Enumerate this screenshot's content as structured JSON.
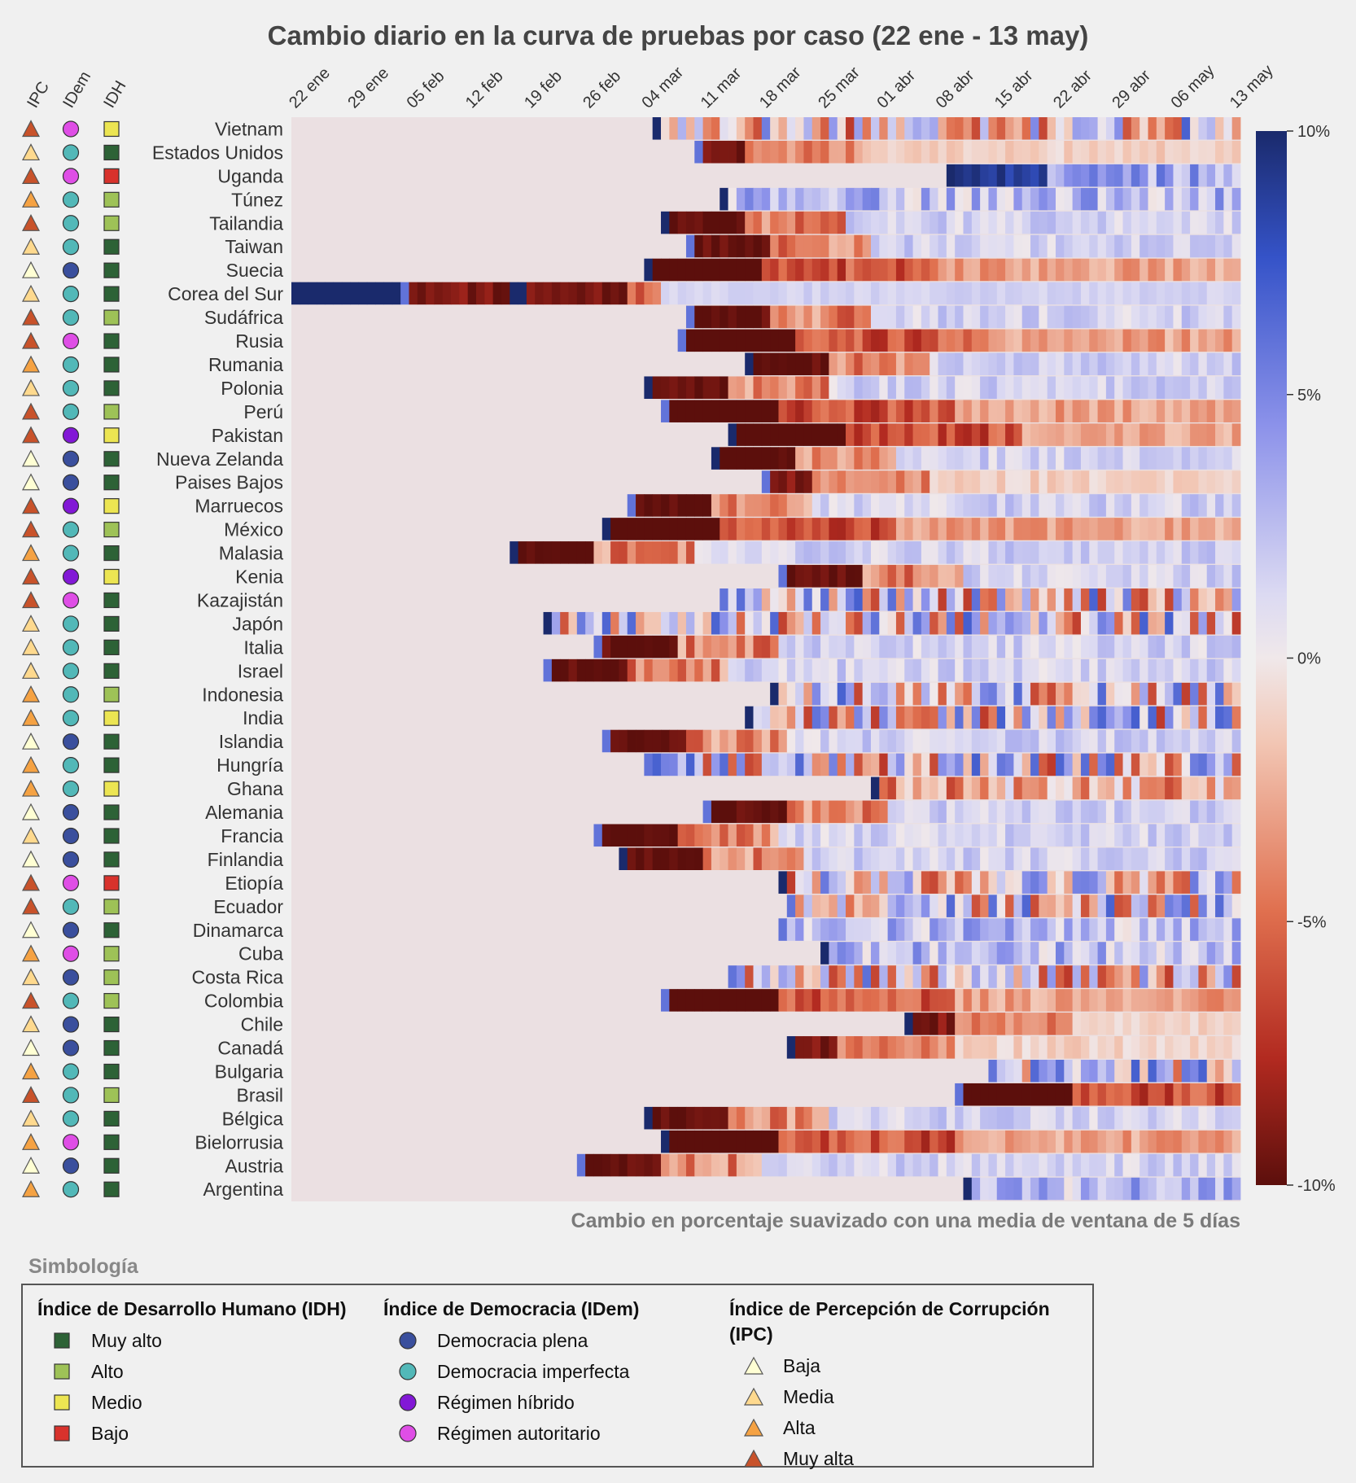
{
  "chart_data": {
    "type": "heatmap",
    "title": "Cambio diario en la curva de pruebas por caso (22 ene - 13 may)",
    "subtitle": "Cambio en porcentaje suavizado con una media de ventana de 5 días",
    "x_tick_labels": [
      "22 ene",
      "29 ene",
      "05 feb",
      "12 feb",
      "19 feb",
      "26 feb",
      "04 mar",
      "11 mar",
      "18 mar",
      "25 mar",
      "01 abr",
      "08 abr",
      "15 abr",
      "22 abr",
      "29 abr",
      "06 may",
      "13 may"
    ],
    "days": 113,
    "indicator_headers": [
      "IPC",
      "IDem",
      "IDH"
    ],
    "colorbar": {
      "min": -10,
      "max": 10,
      "tick_labels": [
        "10%",
        "5%",
        "0%",
        "-5%",
        "-10%"
      ],
      "tick_values": [
        10,
        5,
        0,
        -5,
        -10
      ]
    },
    "countries": [
      {
        "name": "Vietnam",
        "ipc": "Muy alta",
        "idem": "Régimen autoritario",
        "idh": "Medio",
        "start": 43,
        "pattern": "mixed"
      },
      {
        "name": "Estados Unidos",
        "ipc": "Media",
        "idem": "Democracia imperfecta",
        "idh": "Muy alto",
        "start": 48,
        "pattern": "neg_fade"
      },
      {
        "name": "Uganda",
        "ipc": "Muy alta",
        "idem": "Régimen autoritario",
        "idh": "Bajo",
        "start": 78,
        "pattern": "pos_strong"
      },
      {
        "name": "Túnez",
        "ipc": "Alta",
        "idem": "Democracia imperfecta",
        "idh": "Alto",
        "start": 51,
        "pattern": "mixed_pos"
      },
      {
        "name": "Tailandia",
        "ipc": "Muy alta",
        "idem": "Democracia imperfecta",
        "idh": "Alto",
        "start": 44,
        "pattern": "neg_then_pos"
      },
      {
        "name": "Taiwan",
        "ipc": "Media",
        "idem": "Democracia imperfecta",
        "idh": "Muy alto",
        "start": 47,
        "pattern": "neg_then_pos"
      },
      {
        "name": "Suecia",
        "ipc": "Baja",
        "idem": "Democracia plena",
        "idh": "Muy alto",
        "start": 42,
        "pattern": "neg_long"
      },
      {
        "name": "Corea del Sur",
        "ipc": "Media",
        "idem": "Democracia imperfecta",
        "idh": "Muy alto",
        "start": 0,
        "pattern": "korea"
      },
      {
        "name": "Sudáfrica",
        "ipc": "Muy alta",
        "idem": "Democracia imperfecta",
        "idh": "Alto",
        "start": 47,
        "pattern": "neg_then_pos"
      },
      {
        "name": "Rusia",
        "ipc": "Muy alta",
        "idem": "Régimen autoritario",
        "idh": "Muy alto",
        "start": 46,
        "pattern": "neg_long"
      },
      {
        "name": "Rumania",
        "ipc": "Alta",
        "idem": "Democracia imperfecta",
        "idh": "Muy alto",
        "start": 54,
        "pattern": "neg_then_pos"
      },
      {
        "name": "Polonia",
        "ipc": "Media",
        "idem": "Democracia imperfecta",
        "idh": "Muy alto",
        "start": 42,
        "pattern": "neg_then_pos"
      },
      {
        "name": "Perú",
        "ipc": "Muy alta",
        "idem": "Democracia imperfecta",
        "idh": "Alto",
        "start": 44,
        "pattern": "neg_long"
      },
      {
        "name": "Pakistan",
        "ipc": "Muy alta",
        "idem": "Régimen híbrido",
        "idh": "Medio",
        "start": 52,
        "pattern": "neg_long"
      },
      {
        "name": "Nueva Zelanda",
        "ipc": "Baja",
        "idem": "Democracia plena",
        "idh": "Muy alto",
        "start": 50,
        "pattern": "neg_then_pos"
      },
      {
        "name": "Paises Bajos",
        "ipc": "Baja",
        "idem": "Democracia plena",
        "idh": "Muy alto",
        "start": 56,
        "pattern": "neg_fade"
      },
      {
        "name": "Marruecos",
        "ipc": "Muy alta",
        "idem": "Régimen híbrido",
        "idh": "Medio",
        "start": 40,
        "pattern": "neg_then_pos"
      },
      {
        "name": "México",
        "ipc": "Muy alta",
        "idem": "Democracia imperfecta",
        "idh": "Alto",
        "start": 37,
        "pattern": "neg_long"
      },
      {
        "name": "Malasia",
        "ipc": "Alta",
        "idem": "Democracia imperfecta",
        "idh": "Muy alto",
        "start": 26,
        "pattern": "neg_then_pos"
      },
      {
        "name": "Kenia",
        "ipc": "Muy alta",
        "idem": "Régimen híbrido",
        "idh": "Medio",
        "start": 58,
        "pattern": "neg_then_pos"
      },
      {
        "name": "Kazajistán",
        "ipc": "Muy alta",
        "idem": "Régimen autoritario",
        "idh": "Muy alto",
        "start": 51,
        "pattern": "mixed"
      },
      {
        "name": "Japón",
        "ipc": "Media",
        "idem": "Democracia imperfecta",
        "idh": "Muy alto",
        "start": 30,
        "pattern": "mixed"
      },
      {
        "name": "Italia",
        "ipc": "Media",
        "idem": "Democracia imperfecta",
        "idh": "Muy alto",
        "start": 36,
        "pattern": "neg_then_pos"
      },
      {
        "name": "Israel",
        "ipc": "Media",
        "idem": "Democracia imperfecta",
        "idh": "Muy alto",
        "start": 30,
        "pattern": "neg_then_pos"
      },
      {
        "name": "Indonesia",
        "ipc": "Alta",
        "idem": "Democracia imperfecta",
        "idh": "Alto",
        "start": 57,
        "pattern": "mixed"
      },
      {
        "name": "India",
        "ipc": "Alta",
        "idem": "Democracia imperfecta",
        "idh": "Medio",
        "start": 54,
        "pattern": "mixed"
      },
      {
        "name": "Islandia",
        "ipc": "Baja",
        "idem": "Democracia plena",
        "idh": "Muy alto",
        "start": 37,
        "pattern": "neg_then_pos"
      },
      {
        "name": "Hungría",
        "ipc": "Alta",
        "idem": "Democracia imperfecta",
        "idh": "Muy alto",
        "start": 42,
        "pattern": "mixed"
      },
      {
        "name": "Ghana",
        "ipc": "Alta",
        "idem": "Democracia imperfecta",
        "idh": "Medio",
        "start": 69,
        "pattern": "mixed_neg"
      },
      {
        "name": "Alemania",
        "ipc": "Baja",
        "idem": "Democracia plena",
        "idh": "Muy alto",
        "start": 49,
        "pattern": "neg_then_pos"
      },
      {
        "name": "Francia",
        "ipc": "Media",
        "idem": "Democracia plena",
        "idh": "Muy alto",
        "start": 36,
        "pattern": "neg_then_pos"
      },
      {
        "name": "Finlandia",
        "ipc": "Baja",
        "idem": "Democracia plena",
        "idh": "Muy alto",
        "start": 39,
        "pattern": "neg_then_pos"
      },
      {
        "name": "Etiopía",
        "ipc": "Muy alta",
        "idem": "Régimen autoritario",
        "idh": "Bajo",
        "start": 58,
        "pattern": "mixed"
      },
      {
        "name": "Ecuador",
        "ipc": "Muy alta",
        "idem": "Democracia imperfecta",
        "idh": "Alto",
        "start": 59,
        "pattern": "mixed"
      },
      {
        "name": "Dinamarca",
        "ipc": "Baja",
        "idem": "Democracia plena",
        "idh": "Muy alto",
        "start": 58,
        "pattern": "mixed_pos"
      },
      {
        "name": "Cuba",
        "ipc": "Alta",
        "idem": "Régimen autoritario",
        "idh": "Alto",
        "start": 63,
        "pattern": "mixed_pos"
      },
      {
        "name": "Costa Rica",
        "ipc": "Media",
        "idem": "Democracia plena",
        "idh": "Alto",
        "start": 52,
        "pattern": "mixed"
      },
      {
        "name": "Colombia",
        "ipc": "Muy alta",
        "idem": "Democracia imperfecta",
        "idh": "Alto",
        "start": 44,
        "pattern": "neg_long"
      },
      {
        "name": "Chile",
        "ipc": "Media",
        "idem": "Democracia plena",
        "idh": "Muy alto",
        "start": 73,
        "pattern": "neg_fade"
      },
      {
        "name": "Canadá",
        "ipc": "Baja",
        "idem": "Democracia plena",
        "idh": "Muy alto",
        "start": 59,
        "pattern": "neg_fade"
      },
      {
        "name": "Bulgaria",
        "ipc": "Alta",
        "idem": "Democracia imperfecta",
        "idh": "Muy alto",
        "start": 83,
        "pattern": "mixed"
      },
      {
        "name": "Brasil",
        "ipc": "Muy alta",
        "idem": "Democracia imperfecta",
        "idh": "Alto",
        "start": 79,
        "pattern": "neg_long"
      },
      {
        "name": "Bélgica",
        "ipc": "Media",
        "idem": "Democracia imperfecta",
        "idh": "Muy alto",
        "start": 42,
        "pattern": "neg_then_pos"
      },
      {
        "name": "Bielorrusia",
        "ipc": "Alta",
        "idem": "Régimen autoritario",
        "idh": "Muy alto",
        "start": 44,
        "pattern": "neg_long"
      },
      {
        "name": "Austria",
        "ipc": "Baja",
        "idem": "Democracia plena",
        "idh": "Muy alto",
        "start": 34,
        "pattern": "neg_then_pos"
      },
      {
        "name": "Argentina",
        "ipc": "Alta",
        "idem": "Democracia imperfecta",
        "idh": "Muy alto",
        "start": 80,
        "pattern": "mixed_pos"
      }
    ]
  },
  "legend": {
    "heading": "Simbología",
    "idh": {
      "title": "Índice de Desarrollo Humano (IDH)",
      "items": [
        {
          "label": "Muy alto",
          "color": "#2d6236"
        },
        {
          "label": "Alto",
          "color": "#9ec257"
        },
        {
          "label": "Medio",
          "color": "#ece552"
        },
        {
          "label": "Bajo",
          "color": "#d8322c"
        }
      ]
    },
    "idem": {
      "title": "Índice de Democracia (IDem)",
      "items": [
        {
          "label": "Democracia plena",
          "color": "#3a4f9d"
        },
        {
          "label": "Democracia imperfecta",
          "color": "#52b8b8"
        },
        {
          "label": "Régimen híbrido",
          "color": "#8218d6"
        },
        {
          "label": "Régimen autoritario",
          "color": "#df4ee6"
        }
      ]
    },
    "ipc": {
      "title": "Índice de Percepción de Corrupción (IPC)",
      "items": [
        {
          "label": "Baja",
          "color": "#ffffd4"
        },
        {
          "label": "Media",
          "color": "#fed98e"
        },
        {
          "label": "Alta",
          "color": "#f5a243"
        },
        {
          "label": "Muy alta",
          "color": "#c8522a"
        }
      ]
    }
  }
}
